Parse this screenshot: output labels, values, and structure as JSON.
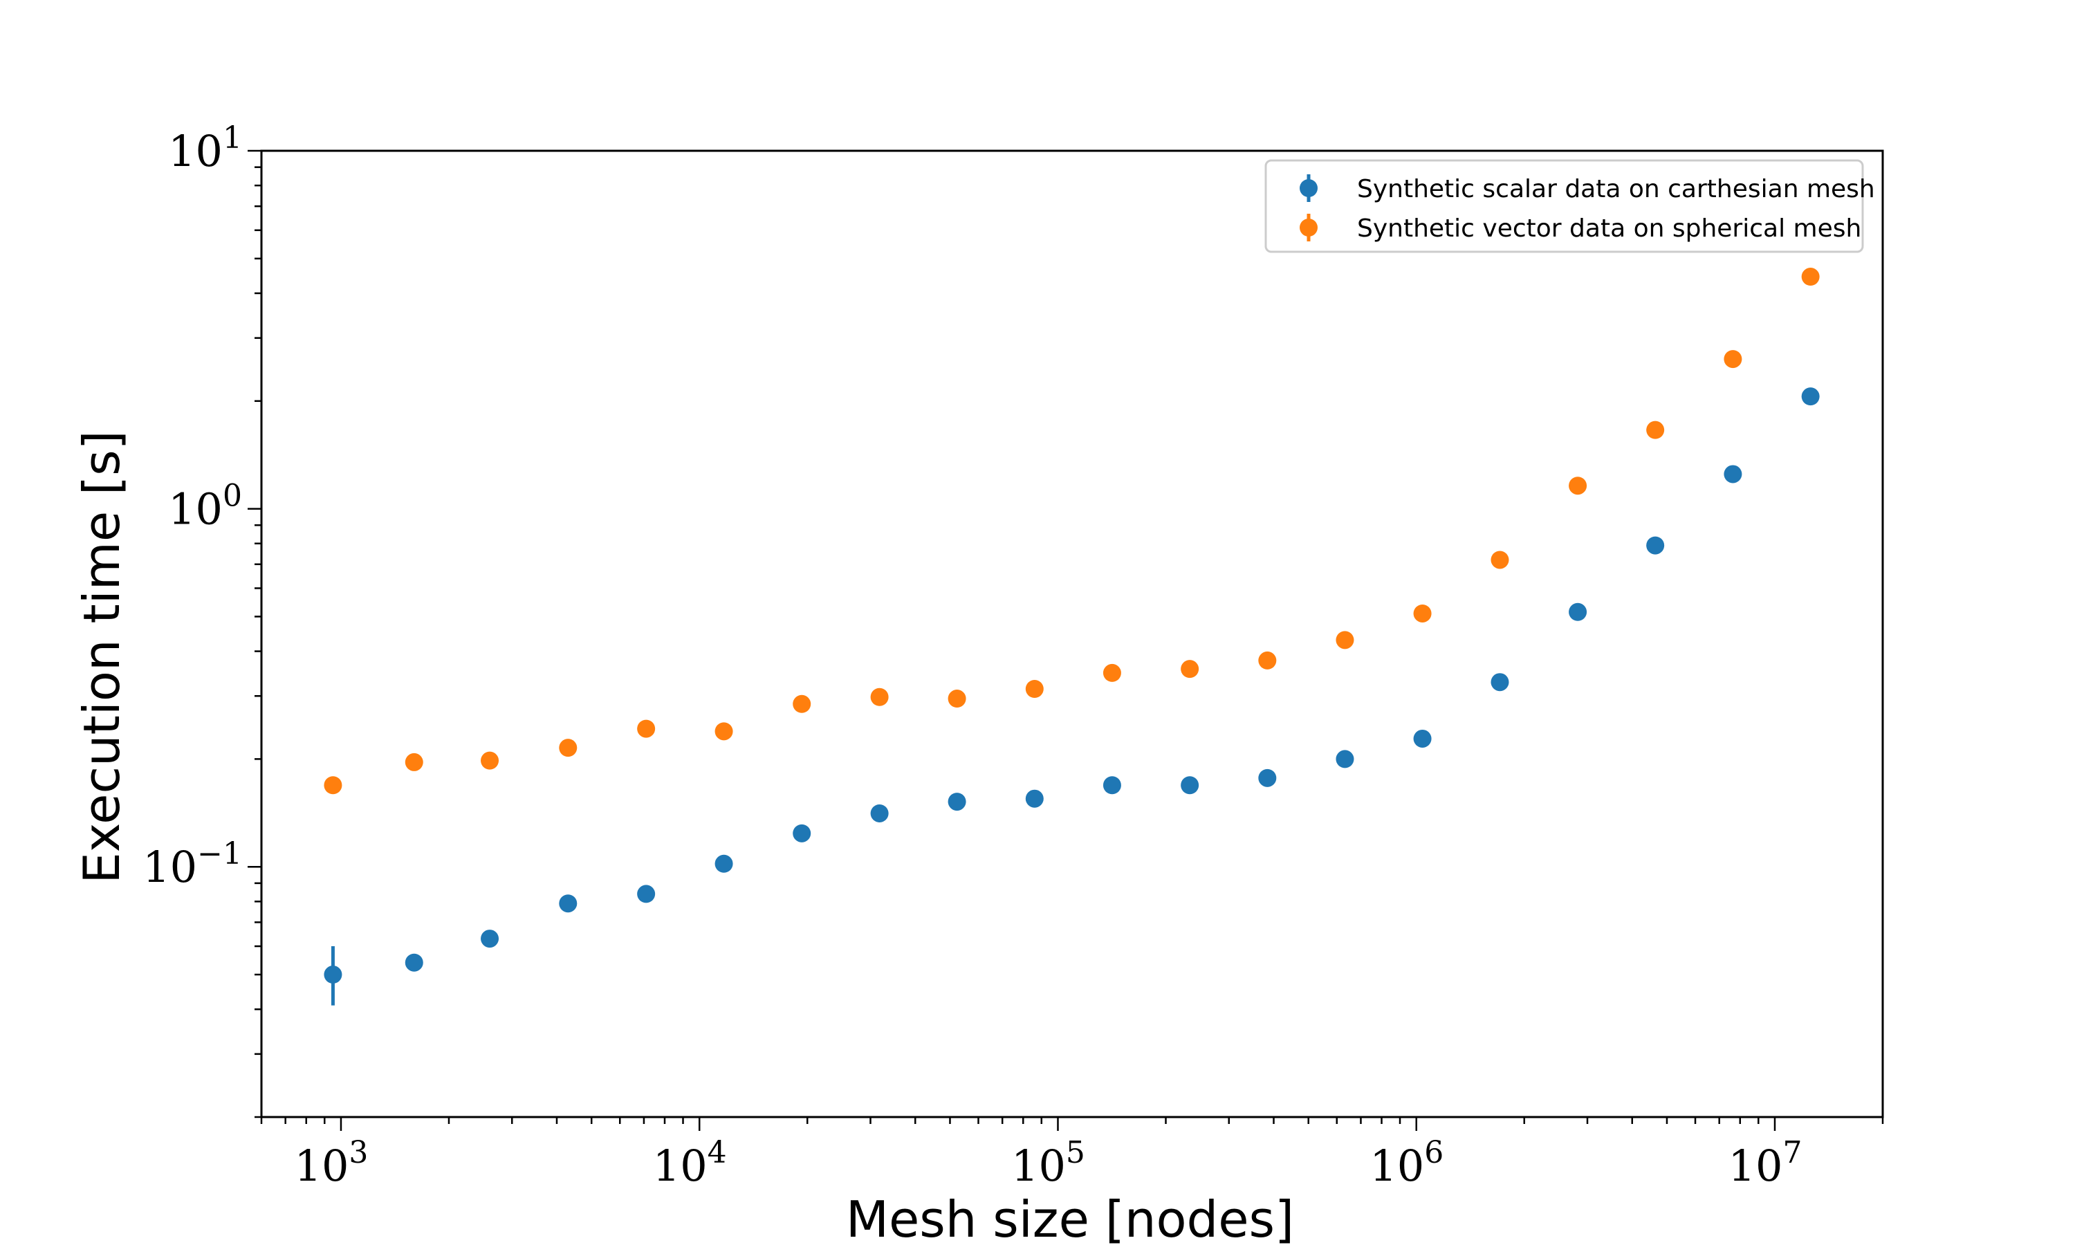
{
  "chart_data": {
    "type": "scatter",
    "title": "",
    "xlabel": "Mesh size [nodes]",
    "ylabel": "Execution time [s]",
    "xscale": "log",
    "yscale": "log",
    "xlim": [
      600,
      20000000
    ],
    "ylim": [
      0.02,
      10
    ],
    "grid": false,
    "legend_position": "top-right",
    "x_ticks": [
      {
        "base": "10",
        "exp": "3",
        "value": 1000
      },
      {
        "base": "10",
        "exp": "4",
        "value": 10000
      },
      {
        "base": "10",
        "exp": "5",
        "value": 100000
      },
      {
        "base": "10",
        "exp": "6",
        "value": 1000000
      },
      {
        "base": "10",
        "exp": "7",
        "value": 10000000
      }
    ],
    "y_ticks": [
      {
        "base": "10",
        "exp": "−1",
        "value": 0.1
      },
      {
        "base": "10",
        "exp": "0",
        "value": 1
      },
      {
        "base": "10",
        "exp": "1",
        "value": 10
      }
    ],
    "x": [
      950,
      1600,
      2600,
      4300,
      7100,
      11700,
      19300,
      31800,
      52300,
      86100,
      141700,
      233300,
      384000,
      632000,
      1040000,
      1710000,
      2820000,
      4640000,
      7640000,
      12580000
    ],
    "series": [
      {
        "name": "Synthetic scalar data on carthesian mesh",
        "color": "#1f77b4",
        "values": [
          0.05,
          0.054,
          0.063,
          0.079,
          0.084,
          0.102,
          0.124,
          0.141,
          0.152,
          0.155,
          0.169,
          0.169,
          0.177,
          0.2,
          0.228,
          0.328,
          0.515,
          0.79,
          1.25,
          2.06
        ],
        "errors": [
          {
            "index": 0,
            "low": 0.041,
            "high": 0.06
          }
        ]
      },
      {
        "name": "Synthetic vector data on spherical mesh",
        "color": "#ff7f0e",
        "values": [
          0.169,
          0.196,
          0.198,
          0.215,
          0.243,
          0.239,
          0.285,
          0.298,
          0.295,
          0.314,
          0.348,
          0.357,
          0.377,
          0.43,
          0.51,
          0.72,
          1.16,
          1.66,
          2.62,
          4.45
        ]
      }
    ]
  }
}
